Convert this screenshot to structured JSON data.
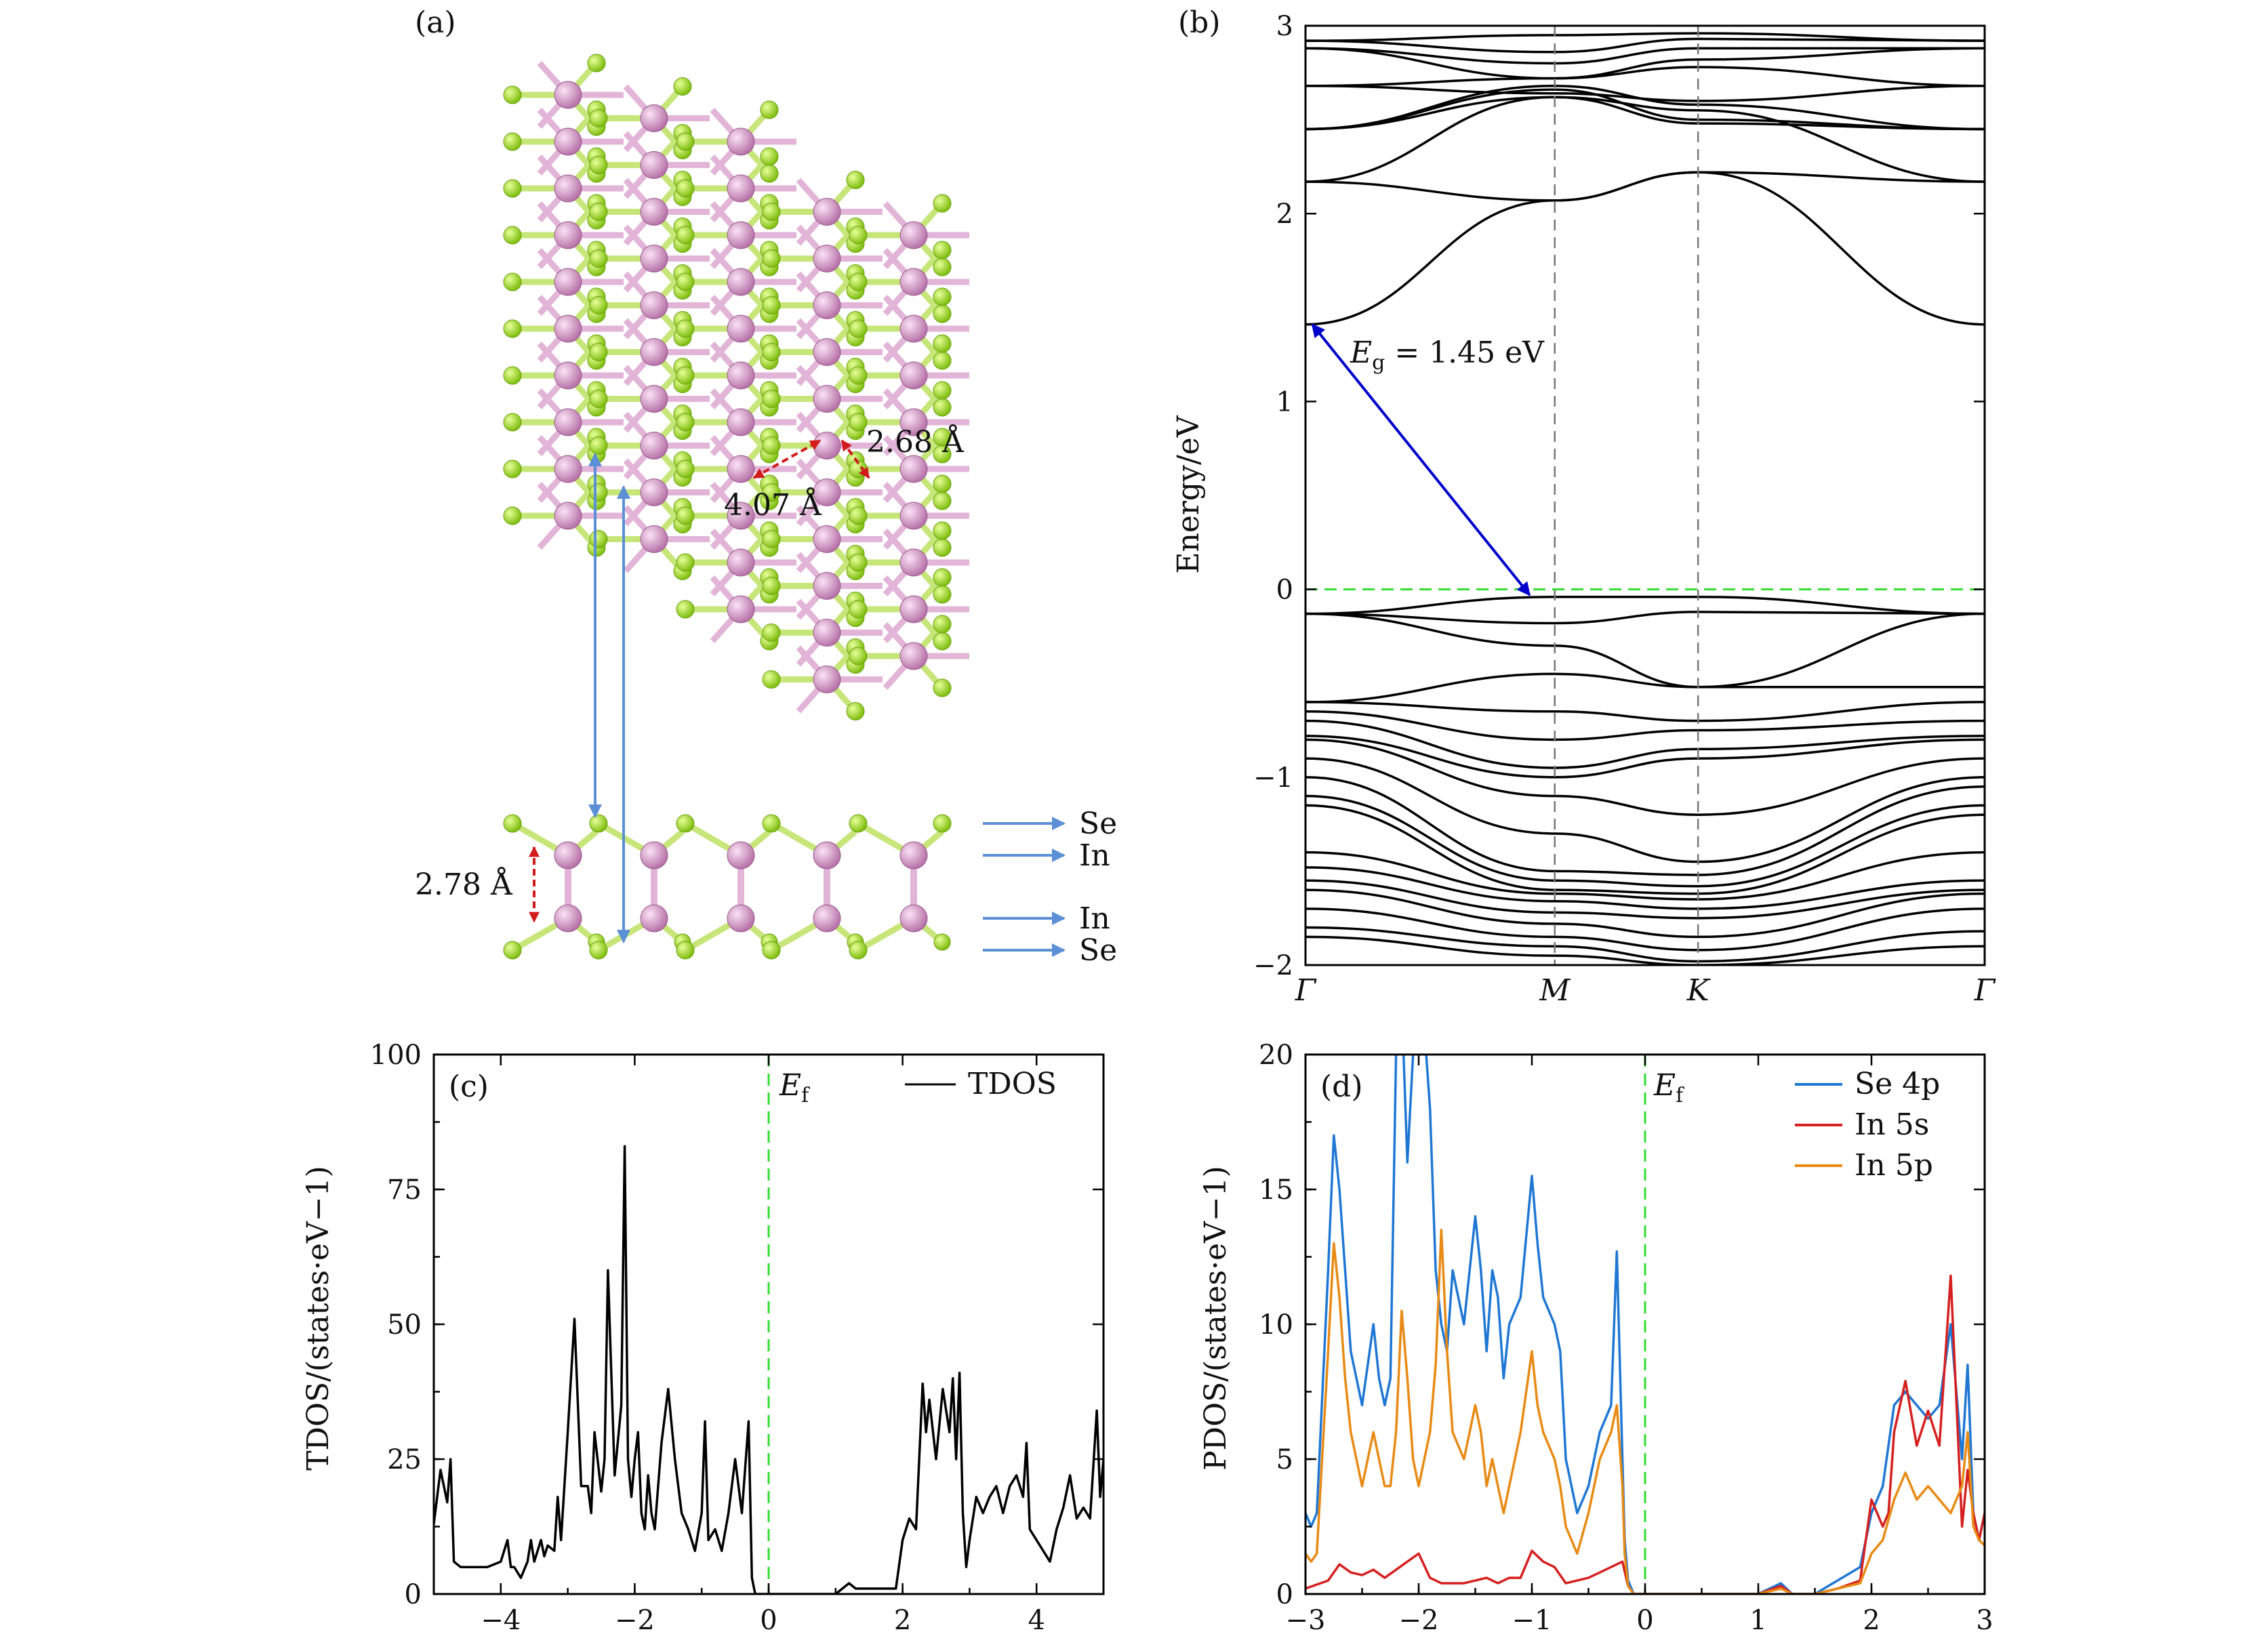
{
  "panels": {
    "a": {
      "label": "(a)"
    },
    "b": {
      "label": "(b)"
    },
    "c": {
      "label": "(c)"
    },
    "d": {
      "label": "(d)"
    }
  },
  "structure": {
    "bond_in_se_label": "2.68 Å",
    "in_in_label": "4.07 Å",
    "thickness_label": "2.78 Å",
    "layer_labels": [
      "Se",
      "In",
      "In",
      "Se"
    ],
    "colors": {
      "se_atom": "#9ad61e",
      "in_atom": "#d890c8",
      "arrow_blue": "#5b8fd6",
      "arrow_red": "#d21b1b"
    }
  },
  "chart_data": [
    {
      "panel": "b",
      "type": "line",
      "ylabel": "Energy/eV",
      "ylim": [
        -2,
        3
      ],
      "yticks": [
        "−2",
        "−1",
        "0",
        "1",
        "2",
        "3"
      ],
      "kpath": [
        "Γ",
        "M",
        "K",
        "Γ"
      ],
      "fermi_level": 0,
      "gap_annotation": {
        "label": "Eg = 1.45 eV",
        "var": "E",
        "sub": "g",
        "rest": " = 1.45 eV",
        "from_energy": 1.41,
        "to_energy": -0.03,
        "color": "#0000cc"
      },
      "bands_conduction": [
        {
          "energies": [
            1.41,
            2.07,
            2.22,
            1.41
          ]
        },
        {
          "energies": [
            2.17,
            2.07,
            2.22,
            2.17
          ]
        },
        {
          "energies": [
            2.17,
            2.62,
            2.55,
            2.17
          ]
        },
        {
          "energies": [
            2.45,
            2.62,
            2.48,
            2.45
          ]
        },
        {
          "energies": [
            2.45,
            2.66,
            2.5,
            2.45
          ]
        },
        {
          "energies": [
            2.45,
            2.68,
            2.58,
            2.45
          ]
        },
        {
          "energies": [
            2.68,
            2.64,
            2.6,
            2.68
          ]
        },
        {
          "energies": [
            2.68,
            2.72,
            2.78,
            2.68
          ]
        },
        {
          "energies": [
            2.88,
            2.72,
            2.82,
            2.88
          ]
        },
        {
          "energies": [
            2.88,
            2.8,
            2.88,
            2.88
          ]
        },
        {
          "energies": [
            2.92,
            2.86,
            2.93,
            2.92
          ]
        },
        {
          "energies": [
            2.92,
            2.95,
            2.96,
            2.92
          ]
        }
      ],
      "bands_valence": [
        {
          "energies": [
            -0.13,
            -0.04,
            -0.04,
            -0.13
          ]
        },
        {
          "energies": [
            -0.13,
            -0.18,
            -0.12,
            -0.13
          ]
        },
        {
          "energies": [
            -0.13,
            -0.3,
            -0.52,
            -0.13
          ]
        },
        {
          "energies": [
            -0.6,
            -0.45,
            -0.52,
            -0.52
          ]
        },
        {
          "energies": [
            -0.6,
            -0.65,
            -0.7,
            -0.6
          ]
        },
        {
          "energies": [
            -0.65,
            -0.8,
            -0.75,
            -0.7
          ]
        },
        {
          "energies": [
            -0.7,
            -0.95,
            -0.85,
            -0.78
          ]
        },
        {
          "energies": [
            -0.78,
            -1.0,
            -0.9,
            -0.8
          ]
        },
        {
          "energies": [
            -0.8,
            -1.1,
            -1.2,
            -0.9
          ]
        },
        {
          "energies": [
            -0.9,
            -1.3,
            -1.45,
            -1.0
          ]
        },
        {
          "energies": [
            -1.0,
            -1.5,
            -1.52,
            -1.05
          ]
        },
        {
          "energies": [
            -1.1,
            -1.55,
            -1.58,
            -1.15
          ]
        },
        {
          "energies": [
            -1.15,
            -1.6,
            -1.62,
            -1.2
          ]
        },
        {
          "energies": [
            -1.4,
            -1.62,
            -1.65,
            -1.4
          ]
        },
        {
          "energies": [
            -1.48,
            -1.66,
            -1.7,
            -1.55
          ]
        },
        {
          "energies": [
            -1.55,
            -1.72,
            -1.75,
            -1.6
          ]
        },
        {
          "energies": [
            -1.6,
            -1.78,
            -1.85,
            -1.62
          ]
        },
        {
          "energies": [
            -1.7,
            -1.85,
            -1.92,
            -1.7
          ]
        },
        {
          "energies": [
            -1.8,
            -1.9,
            -1.98,
            -1.82
          ]
        },
        {
          "energies": [
            -1.85,
            -1.95,
            -2.0,
            -1.9
          ]
        }
      ]
    },
    {
      "panel": "c",
      "type": "line",
      "ylabel": "TDOS/(states·eV−1)",
      "xlim": [
        -5,
        5
      ],
      "ylim": [
        0,
        100
      ],
      "xticks": [
        "−4",
        "−2",
        "0",
        "2",
        "4"
      ],
      "yticks": [
        "0",
        "25",
        "50",
        "75",
        "100"
      ],
      "fermi_label": "Ef",
      "series": [
        {
          "name": "TDOS",
          "color": "#000000",
          "x": [
            -5.0,
            -4.9,
            -4.8,
            -4.75,
            -4.7,
            -4.6,
            -4.4,
            -4.2,
            -4.0,
            -3.9,
            -3.85,
            -3.8,
            -3.7,
            -3.6,
            -3.55,
            -3.5,
            -3.4,
            -3.35,
            -3.3,
            -3.2,
            -3.15,
            -3.1,
            -3.0,
            -2.9,
            -2.8,
            -2.7,
            -2.65,
            -2.6,
            -2.5,
            -2.45,
            -2.4,
            -2.3,
            -2.2,
            -2.15,
            -2.1,
            -2.05,
            -2.0,
            -1.95,
            -1.9,
            -1.85,
            -1.8,
            -1.75,
            -1.7,
            -1.6,
            -1.5,
            -1.4,
            -1.3,
            -1.2,
            -1.1,
            -1.0,
            -0.95,
            -0.9,
            -0.8,
            -0.7,
            -0.6,
            -0.5,
            -0.4,
            -0.3,
            -0.25,
            -0.2,
            -0.15,
            -0.1,
            0.0,
            1.0,
            1.2,
            1.3,
            1.5,
            1.7,
            1.9,
            2.0,
            2.1,
            2.2,
            2.3,
            2.35,
            2.4,
            2.5,
            2.6,
            2.7,
            2.75,
            2.8,
            2.85,
            2.9,
            2.95,
            3.0,
            3.1,
            3.2,
            3.3,
            3.4,
            3.5,
            3.6,
            3.7,
            3.8,
            3.85,
            3.9,
            4.0,
            4.1,
            4.2,
            4.3,
            4.4,
            4.5,
            4.6,
            4.7,
            4.8,
            4.9,
            4.95,
            5.0
          ],
          "y": [
            13,
            23,
            17,
            25,
            6,
            5,
            5,
            5,
            6,
            10,
            5,
            5,
            3,
            6,
            10,
            6,
            10,
            7,
            9,
            8,
            18,
            10,
            30,
            51,
            20,
            20,
            15,
            30,
            19,
            25,
            60,
            22,
            35,
            83,
            25,
            18,
            25,
            30,
            15,
            12,
            22,
            15,
            12,
            28,
            38,
            25,
            15,
            12,
            8,
            15,
            32,
            10,
            12,
            8,
            15,
            25,
            15,
            32,
            3,
            0,
            0,
            0,
            0,
            0,
            2,
            1,
            1,
            1,
            1,
            10,
            14,
            12,
            39,
            30,
            36,
            25,
            38,
            30,
            40,
            25,
            41,
            15,
            5,
            10,
            18,
            15,
            18,
            20,
            15,
            20,
            22,
            18,
            28,
            12,
            10,
            8,
            6,
            12,
            16,
            22,
            14,
            16,
            14,
            34,
            18,
            25
          ]
        }
      ]
    },
    {
      "panel": "d",
      "type": "line",
      "ylabel": "PDOS/(states·eV−1)",
      "xlim": [
        -3,
        3
      ],
      "ylim": [
        0,
        20
      ],
      "xticks": [
        "−3",
        "−2",
        "−1",
        "0",
        "1",
        "2",
        "3"
      ],
      "yticks": [
        "0",
        "5",
        "10",
        "15",
        "20"
      ],
      "fermi_label": "Ef",
      "series": [
        {
          "name": "Se 4p",
          "color": "#1f77d4",
          "x": [
            -3.0,
            -2.95,
            -2.9,
            -2.8,
            -2.75,
            -2.7,
            -2.65,
            -2.6,
            -2.5,
            -2.4,
            -2.35,
            -2.3,
            -2.25,
            -2.2,
            -2.15,
            -2.1,
            -2.05,
            -2.0,
            -1.95,
            -1.9,
            -1.85,
            -1.8,
            -1.75,
            -1.7,
            -1.6,
            -1.5,
            -1.45,
            -1.4,
            -1.35,
            -1.3,
            -1.25,
            -1.2,
            -1.1,
            -1.0,
            -0.95,
            -0.9,
            -0.8,
            -0.75,
            -0.7,
            -0.6,
            -0.5,
            -0.4,
            -0.3,
            -0.25,
            -0.2,
            -0.18,
            -0.15,
            -0.1,
            0.0,
            1.0,
            1.2,
            1.3,
            1.5,
            1.7,
            1.9,
            2.0,
            2.1,
            2.2,
            2.3,
            2.4,
            2.5,
            2.6,
            2.7,
            2.8,
            2.85,
            2.9,
            2.95,
            3.0
          ],
          "y": [
            3,
            2.5,
            3,
            12,
            17,
            15,
            12,
            9,
            7,
            10,
            8,
            7,
            8,
            20,
            22,
            16,
            20,
            22,
            21,
            18,
            12,
            10,
            9,
            12,
            10,
            14,
            12,
            9,
            12,
            11,
            8,
            10,
            11,
            15.5,
            13,
            11,
            10,
            9,
            5,
            3,
            4,
            6,
            7,
            12.7,
            5,
            2,
            0.5,
            0,
            0,
            0,
            0.4,
            0,
            0,
            0.5,
            1,
            3,
            4,
            7,
            7.5,
            7,
            6.5,
            7,
            10,
            5,
            8.5,
            3,
            2,
            3
          ]
        },
        {
          "name": "In 5s",
          "color": "#d62020",
          "x": [
            -3.0,
            -2.8,
            -2.7,
            -2.6,
            -2.5,
            -2.4,
            -2.3,
            -2.2,
            -2.1,
            -2.0,
            -1.9,
            -1.8,
            -1.7,
            -1.6,
            -1.5,
            -1.4,
            -1.3,
            -1.2,
            -1.1,
            -1.0,
            -0.9,
            -0.8,
            -0.7,
            -0.6,
            -0.5,
            -0.4,
            -0.3,
            -0.2,
            -0.15,
            -0.1,
            0.0,
            1.0,
            1.2,
            1.3,
            1.5,
            1.7,
            1.9,
            2.0,
            2.1,
            2.15,
            2.2,
            2.3,
            2.4,
            2.5,
            2.6,
            2.7,
            2.8,
            2.85,
            2.9,
            2.95,
            3.0
          ],
          "y": [
            0.2,
            0.5,
            1.1,
            0.8,
            0.7,
            0.9,
            0.6,
            0.9,
            1.2,
            1.5,
            0.6,
            0.4,
            0.4,
            0.4,
            0.5,
            0.6,
            0.4,
            0.6,
            0.6,
            1.6,
            1.2,
            1.0,
            0.4,
            0.5,
            0.6,
            0.8,
            1.0,
            1.2,
            0.3,
            0,
            0,
            0,
            0.3,
            0,
            0,
            0.2,
            0.5,
            3.5,
            2.5,
            3.0,
            6,
            7.9,
            5.5,
            6.8,
            5.5,
            11.8,
            2.5,
            4.6,
            3,
            2,
            3
          ]
        },
        {
          "name": "In 5p",
          "color": "#e88a14",
          "x": [
            -3.0,
            -2.95,
            -2.9,
            -2.8,
            -2.75,
            -2.7,
            -2.65,
            -2.6,
            -2.5,
            -2.4,
            -2.35,
            -2.3,
            -2.25,
            -2.2,
            -2.15,
            -2.1,
            -2.05,
            -2.0,
            -1.95,
            -1.9,
            -1.85,
            -1.8,
            -1.75,
            -1.7,
            -1.6,
            -1.5,
            -1.45,
            -1.4,
            -1.35,
            -1.3,
            -1.25,
            -1.2,
            -1.1,
            -1.0,
            -0.95,
            -0.9,
            -0.8,
            -0.75,
            -0.7,
            -0.6,
            -0.5,
            -0.4,
            -0.3,
            -0.25,
            -0.2,
            -0.18,
            -0.15,
            -0.1,
            0.0,
            1.0,
            1.2,
            1.3,
            1.5,
            1.7,
            1.9,
            2.0,
            2.1,
            2.2,
            2.3,
            2.4,
            2.5,
            2.6,
            2.7,
            2.8,
            2.85,
            2.9,
            2.95,
            3.0
          ],
          "y": [
            1.5,
            1.2,
            1.5,
            9,
            13,
            11,
            8,
            6,
            4,
            6,
            5,
            4,
            4,
            6,
            10.5,
            8,
            5,
            4,
            5,
            6,
            8.5,
            13.5,
            9,
            6,
            5,
            7,
            6,
            4,
            5,
            4,
            3,
            4,
            6,
            9,
            7,
            6,
            5,
            4,
            2.5,
            1.5,
            3,
            5,
            6,
            7,
            4,
            1.5,
            0.3,
            0,
            0,
            0,
            0.2,
            0,
            0,
            0.2,
            0.4,
            1.5,
            2,
            3.5,
            4.5,
            3.5,
            4,
            3.5,
            3,
            4,
            6,
            2.5,
            2,
            1.8
          ]
        }
      ]
    }
  ]
}
